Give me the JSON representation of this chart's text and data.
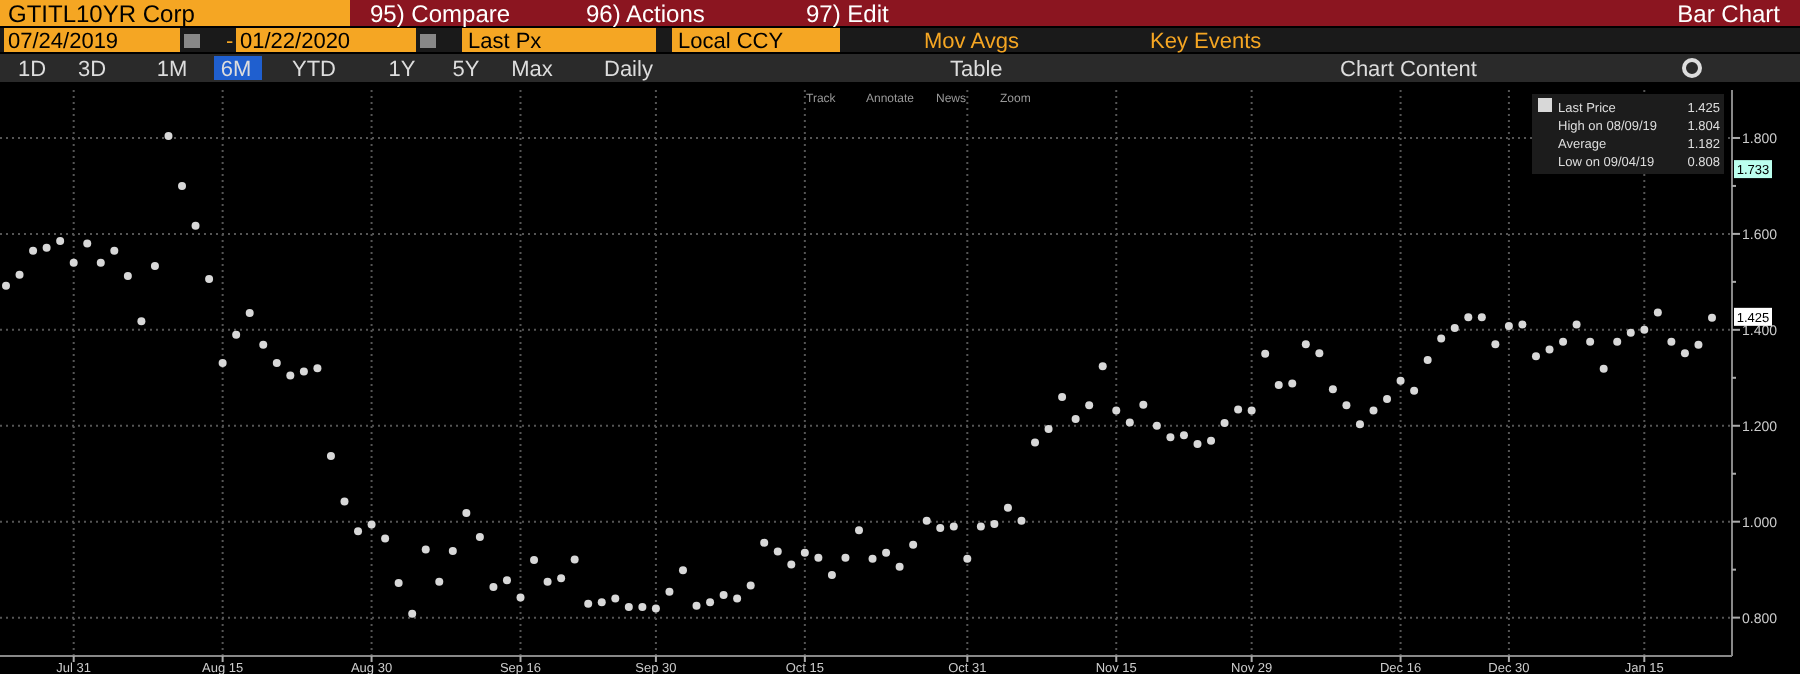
{
  "chart_data": {
    "type": "scatter",
    "title": "GTITL10YR Corp",
    "categories": [
      null,
      null,
      null,
      null,
      null,
      "Jul 31",
      null,
      null,
      null,
      null,
      null,
      null,
      null,
      null,
      null,
      null,
      "Aug 15",
      null,
      null,
      null,
      null,
      null,
      null,
      null,
      null,
      null,
      null,
      "Aug 30",
      null,
      null,
      null,
      null,
      null,
      null,
      null,
      null,
      null,
      null,
      "Sep 16",
      null,
      null,
      null,
      null,
      null,
      null,
      null,
      null,
      null,
      "Sep 30",
      null,
      null,
      null,
      null,
      null,
      null,
      null,
      null,
      null,
      null,
      "Oct 15",
      null,
      null,
      null,
      null,
      null,
      null,
      null,
      null,
      null,
      null,
      null,
      "Oct 31",
      null,
      null,
      null,
      null,
      null,
      null,
      null,
      null,
      null,
      null,
      "Nov 15",
      null,
      null,
      null,
      null,
      null,
      null,
      null,
      null,
      null,
      "Nov 29",
      null,
      null,
      null,
      null,
      null,
      null,
      null,
      null,
      null,
      null,
      "Dec 16",
      null,
      null,
      null,
      null,
      null,
      null,
      null,
      "Dec 30",
      null,
      null,
      null,
      null,
      null,
      null,
      null,
      null,
      null,
      "Jan 15",
      null,
      null,
      null,
      null,
      null
    ],
    "series": [
      {
        "name": "Last Price",
        "color": "#d8d8d8",
        "values": [
          1.492,
          1.515,
          1.565,
          1.571,
          1.585,
          1.54,
          1.58,
          1.54,
          1.565,
          1.512,
          1.418,
          1.533,
          1.804,
          1.7,
          1.617,
          1.506,
          1.331,
          1.39,
          1.435,
          1.369,
          1.331,
          1.305,
          1.313,
          1.32,
          1.137,
          1.042,
          0.98,
          0.994,
          0.965,
          0.872,
          0.808,
          0.942,
          0.875,
          0.939,
          1.018,
          0.968,
          0.864,
          0.878,
          0.842,
          0.92,
          0.875,
          0.882,
          0.921,
          0.829,
          0.832,
          0.84,
          0.822,
          0.822,
          0.819,
          0.854,
          0.899,
          0.825,
          0.832,
          0.847,
          0.84,
          0.867,
          0.956,
          0.938,
          0.911,
          0.935,
          0.925,
          0.889,
          0.925,
          0.982,
          0.923,
          0.935,
          0.906,
          0.952,
          1.002,
          0.987,
          0.99,
          0.923,
          0.99,
          0.995,
          1.029,
          1.002,
          1.165,
          1.193,
          1.26,
          1.214,
          1.243,
          1.324,
          1.232,
          1.207,
          1.244,
          1.2,
          1.176,
          1.18,
          1.162,
          1.169,
          1.206,
          1.234,
          1.232,
          1.35,
          1.285,
          1.288,
          1.37,
          1.351,
          1.276,
          1.243,
          1.203,
          1.232,
          1.256,
          1.294,
          1.273,
          1.337,
          1.382,
          1.404,
          1.426,
          1.426,
          1.37,
          1.408,
          1.411,
          1.345,
          1.359,
          1.375,
          1.411,
          1.375,
          1.319,
          1.375,
          1.394,
          1.4,
          1.436,
          1.375,
          1.351,
          1.369,
          1.425
        ]
      }
    ],
    "ylim": [
      0.72,
      1.9
    ],
    "yticks": [
      {
        "value": 0.8,
        "label": "0.800"
      },
      {
        "value": 0.9,
        "label": null
      },
      {
        "value": 1.0,
        "label": "1.000"
      },
      {
        "value": 1.1,
        "label": null
      },
      {
        "value": 1.2,
        "label": "1.200"
      },
      {
        "value": 1.3,
        "label": null
      },
      {
        "value": 1.4,
        "label": "1.400"
      },
      {
        "value": 1.5,
        "label": null
      },
      {
        "value": 1.6,
        "label": "1.600"
      },
      {
        "value": 1.7,
        "label": null
      },
      {
        "value": 1.8,
        "label": "1.800"
      }
    ],
    "grid": true,
    "legend": "top right",
    "marker": "circle",
    "annotations": [
      "1.425",
      "High on 08/09/19",
      "1.804",
      "Average",
      "1.182",
      "Low on 09/04/19",
      "0.808",
      {
        "text": "1.733",
        "y": 1.733
      },
      {
        "text": "1.425",
        "y": 1.425
      },
      "95) Compare",
      "96) Actions",
      "97) Edit",
      "Bar Chart",
      "07/24/2019",
      "-",
      "01/22/2020",
      "Last Px",
      "Local CCY",
      "Mov Avgs",
      "Key Events",
      "1D",
      "3D",
      "1M",
      "6M",
      "YTD",
      "1Y",
      "5Y",
      "Max",
      "Daily",
      "Table",
      "Chart Content",
      "Track",
      "Annotate",
      "News",
      "Zoom"
    ]
  }
}
